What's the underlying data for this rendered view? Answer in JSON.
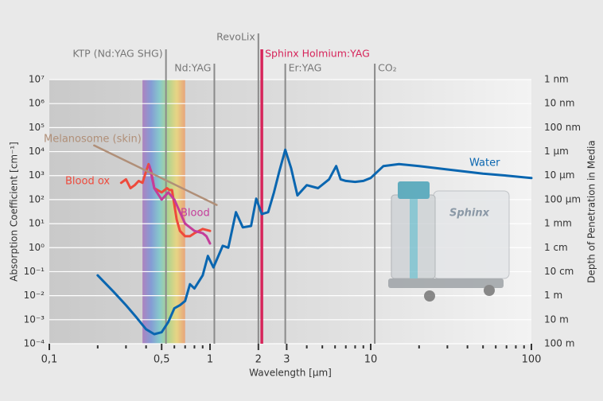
{
  "chart_data": {
    "type": "line",
    "x_label": "Wavelength [µm]",
    "y_label": "Absorption Coefficient [cm⁻¹]",
    "y2_label": "Depth of Penetration in Media",
    "log_x": true,
    "log_y": true,
    "grid": true,
    "xlim": [
      0.1,
      100
    ],
    "xticks": [
      {
        "value": 0.1,
        "label": "0,1"
      },
      {
        "value": 0.5,
        "label": "0,5"
      },
      1,
      2,
      3,
      10,
      100
    ],
    "xminor": [
      0.2,
      0.3,
      0.4,
      0.6,
      0.7,
      0.8,
      0.9,
      4,
      5,
      6,
      7,
      8,
      9,
      20,
      30,
      40,
      50,
      60,
      70,
      80,
      90
    ],
    "ylim": [
      0.0001,
      10000000.0
    ],
    "yticks": [
      {
        "value": 0.0001,
        "label": "10⁻⁴"
      },
      {
        "value": 0.001,
        "label": "10⁻³"
      },
      {
        "value": 0.01,
        "label": "10⁻²"
      },
      {
        "value": 0.1,
        "label": "10⁻¹"
      },
      {
        "value": 1,
        "label": "10⁰"
      },
      {
        "value": 10,
        "label": "10¹"
      },
      {
        "value": 100,
        "label": "10²"
      },
      {
        "value": 1000,
        "label": "10³"
      },
      {
        "value": 10000,
        "label": "10⁴"
      },
      {
        "value": 100000,
        "label": "10⁵"
      },
      {
        "value": 1000000,
        "label": "10⁶"
      },
      {
        "value": 10000000,
        "label": "10⁷"
      }
    ],
    "y2lim": [
      100,
      1e-09
    ],
    "y2ticks": [
      {
        "value": 100,
        "label": "100 m"
      },
      {
        "value": 10,
        "label": "10 m"
      },
      {
        "value": 1,
        "label": "1 m"
      },
      {
        "value": 0.1,
        "label": "10 cm"
      },
      {
        "value": 0.01,
        "label": "1 cm"
      },
      {
        "value": 0.001,
        "label": "1 mm"
      },
      {
        "value": 0.0001,
        "label": "100 µm"
      },
      {
        "value": 1e-05,
        "label": "10 µm"
      },
      {
        "value": 1e-06,
        "label": "1 µm"
      },
      {
        "value": 1e-07,
        "label": "100 nm"
      },
      {
        "value": 1e-08,
        "label": "10 nm"
      },
      {
        "value": 1e-09,
        "label": "1 nm"
      }
    ],
    "visible_band": [
      0.38,
      0.7
    ],
    "series": [
      {
        "name": "Water",
        "color": "#0a66b0",
        "x": [
          0.2,
          0.25,
          0.3,
          0.35,
          0.4,
          0.45,
          0.5,
          0.55,
          0.6,
          0.65,
          0.7,
          0.75,
          0.8,
          0.9,
          0.97,
          1.05,
          1.2,
          1.3,
          1.45,
          1.6,
          1.8,
          1.94,
          2.1,
          2.3,
          2.5,
          2.7,
          2.94,
          3.2,
          3.5,
          4,
          4.7,
          5.5,
          6.1,
          6.5,
          7,
          8,
          9,
          10,
          12,
          15,
          20,
          30,
          50,
          70,
          100
        ],
        "values": [
          0.07,
          0.015,
          0.004,
          0.0012,
          0.0004,
          0.00025,
          0.0003,
          0.0008,
          0.003,
          0.004,
          0.006,
          0.03,
          0.02,
          0.07,
          0.45,
          0.15,
          1.2,
          1.0,
          30,
          7,
          8,
          110,
          25,
          30,
          200,
          1500,
          12000,
          2000,
          150,
          400,
          300,
          700,
          2500,
          700,
          600,
          550,
          600,
          800,
          2500,
          3000,
          2500,
          1800,
          1200,
          1000,
          800
        ]
      },
      {
        "name": "Blood ox",
        "color": "#ee4a3c",
        "x": [
          0.28,
          0.3,
          0.32,
          0.34,
          0.36,
          0.38,
          0.4,
          0.415,
          0.43,
          0.45,
          0.5,
          0.54,
          0.56,
          0.58,
          0.6,
          0.62,
          0.65,
          0.7,
          0.75,
          0.8,
          0.9,
          1.0
        ],
        "values": [
          500,
          700,
          300,
          400,
          600,
          500,
          1500,
          3000,
          1500,
          300,
          200,
          300,
          250,
          250,
          60,
          15,
          5,
          3,
          3,
          4,
          6,
          5
        ]
      },
      {
        "name": "Blood",
        "color": "#c43d9a",
        "x": [
          0.42,
          0.45,
          0.5,
          0.55,
          0.6,
          0.65,
          0.7,
          0.75,
          0.8,
          0.9,
          0.95,
          1.0
        ],
        "values": [
          2500,
          300,
          100,
          200,
          100,
          30,
          10,
          7,
          5,
          4,
          3,
          1.5
        ]
      },
      {
        "name": "Melanosome (skin)",
        "color": "#b08f78",
        "x": [
          0.19,
          1.1
        ],
        "values": [
          18000,
          60
        ]
      }
    ],
    "lasers": [
      {
        "name": "KTP (Nd:YAG SHG)",
        "wavelength": 0.532,
        "color": "#8a8a8a"
      },
      {
        "name": "Nd:YAG",
        "wavelength": 1.064,
        "color": "#8a8a8a"
      },
      {
        "name": "RevoLix",
        "wavelength": 2.0,
        "color": "#8a8a8a"
      },
      {
        "name": "Sphinx Holmium:YAG",
        "wavelength": 2.1,
        "color": "#d6245a"
      },
      {
        "name": "Er:YAG",
        "wavelength": 2.94,
        "color": "#8a8a8a"
      },
      {
        "name": "CO₂",
        "wavelength": 10.6,
        "color": "#8a8a8a"
      }
    ],
    "device_label": "Sphinx"
  }
}
